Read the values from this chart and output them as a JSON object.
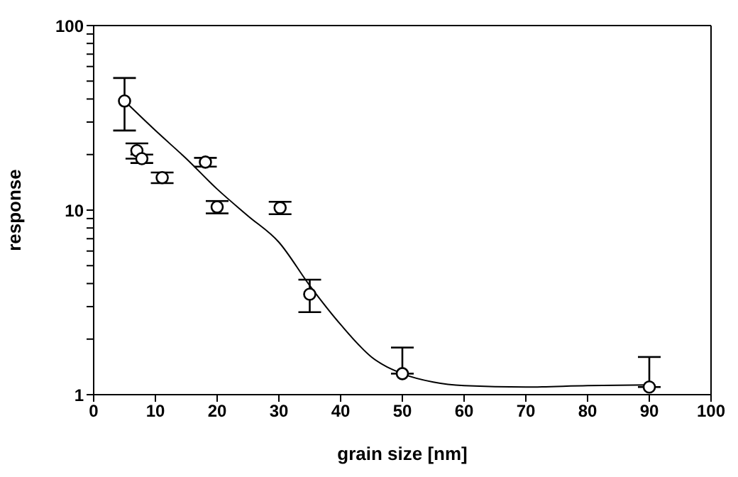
{
  "chart_data": {
    "type": "scatter",
    "xlabel": "grain size [nm]",
    "ylabel": "response",
    "log": "y",
    "grid": false,
    "legend": false,
    "xlim": [
      0,
      100
    ],
    "ylim": [
      1,
      100
    ],
    "xticks": [
      0,
      10,
      20,
      30,
      40,
      50,
      60,
      70,
      80,
      90,
      100
    ],
    "yticks": [
      1,
      {
        "value": 2,
        "label": null
      },
      {
        "value": 3,
        "label": null
      },
      {
        "value": 4,
        "label": null
      },
      {
        "value": 5,
        "label": null
      },
      {
        "value": 6,
        "label": null
      },
      {
        "value": 7,
        "label": null
      },
      {
        "value": 8,
        "label": null
      },
      {
        "value": 9,
        "label": null
      },
      10,
      {
        "value": 20,
        "label": null
      },
      {
        "value": 30,
        "label": null
      },
      {
        "value": 40,
        "label": null
      },
      {
        "value": 50,
        "label": null
      },
      {
        "value": 60,
        "label": null
      },
      {
        "value": 70,
        "label": null
      },
      {
        "value": 80,
        "label": null
      },
      {
        "value": 90,
        "label": null
      },
      100
    ],
    "series": [
      {
        "color": "#000000",
        "marker": "circle",
        "x": [
          5,
          7,
          7.8,
          11.1,
          18.1,
          20,
          30.2,
          35,
          50,
          90
        ],
        "values": [
          39,
          21,
          19,
          15,
          18.2,
          10.4,
          10.3,
          3.5,
          1.3,
          1.1
        ],
        "errors": [
          [
            27,
            52
          ],
          [
            19,
            23
          ],
          [
            18,
            20
          ],
          [
            14,
            16
          ],
          [
            17.2,
            19.2
          ],
          [
            9.6,
            11.2
          ],
          [
            9.5,
            11.1
          ],
          [
            2.8,
            4.2
          ],
          [
            1.3,
            1.8
          ],
          [
            1.1,
            1.6
          ]
        ]
      },
      {
        "type": "line",
        "color": "#000000",
        "marker": "none",
        "x": [
          5,
          10,
          15,
          20,
          25,
          30,
          35,
          40,
          45,
          50,
          55,
          60,
          70,
          80,
          90
        ],
        "values": [
          39,
          27,
          19,
          13,
          9.3,
          6.7,
          3.9,
          2.4,
          1.6,
          1.3,
          1.17,
          1.12,
          1.1,
          1.12,
          1.13
        ]
      }
    ]
  }
}
